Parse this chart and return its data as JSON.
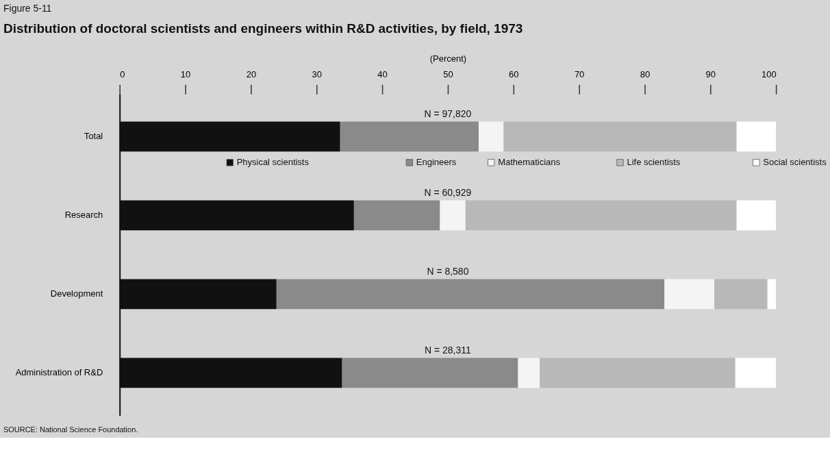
{
  "chart_data": {
    "type": "bar",
    "orientation": "horizontal",
    "stacked": true,
    "title": "Distribution of doctoral scientists and engineers within R&D activities, by field, 1973",
    "xlabel": "(Percent)",
    "categories": [
      "Total",
      "Research",
      "Development",
      "Administration of R&D"
    ],
    "series": [
      {
        "name": "Physical scientists",
        "color": "#111111",
        "values": [
          33.6,
          35.7,
          23.9,
          33.9
        ]
      },
      {
        "name": "Engineers",
        "color": "#8a8a8a",
        "values": [
          21.1,
          13.1,
          59.1,
          26.8
        ]
      },
      {
        "name": "Mathematicians",
        "color": "#f4f4f4",
        "values": [
          3.8,
          3.9,
          7.6,
          3.3
        ]
      },
      {
        "name": "Life scientists",
        "color": "#b8b8b8",
        "values": [
          35.5,
          41.3,
          8.1,
          29.8
        ]
      },
      {
        "name": "Social scientists",
        "color": "#ffffff",
        "values": [
          6.0,
          6.0,
          1.3,
          6.2
        ]
      }
    ],
    "xlim": [
      0,
      100
    ],
    "xticks": [
      0,
      10,
      20,
      30,
      40,
      50,
      60,
      70,
      80,
      90,
      100
    ],
    "grid": false,
    "legend": "top",
    "annotations": [
      "Figure 5-11",
      "N = 97,820",
      "N = 60,929",
      "N = 8,580",
      "N = 28,311",
      "SOURCE: National Science Foundation."
    ]
  }
}
